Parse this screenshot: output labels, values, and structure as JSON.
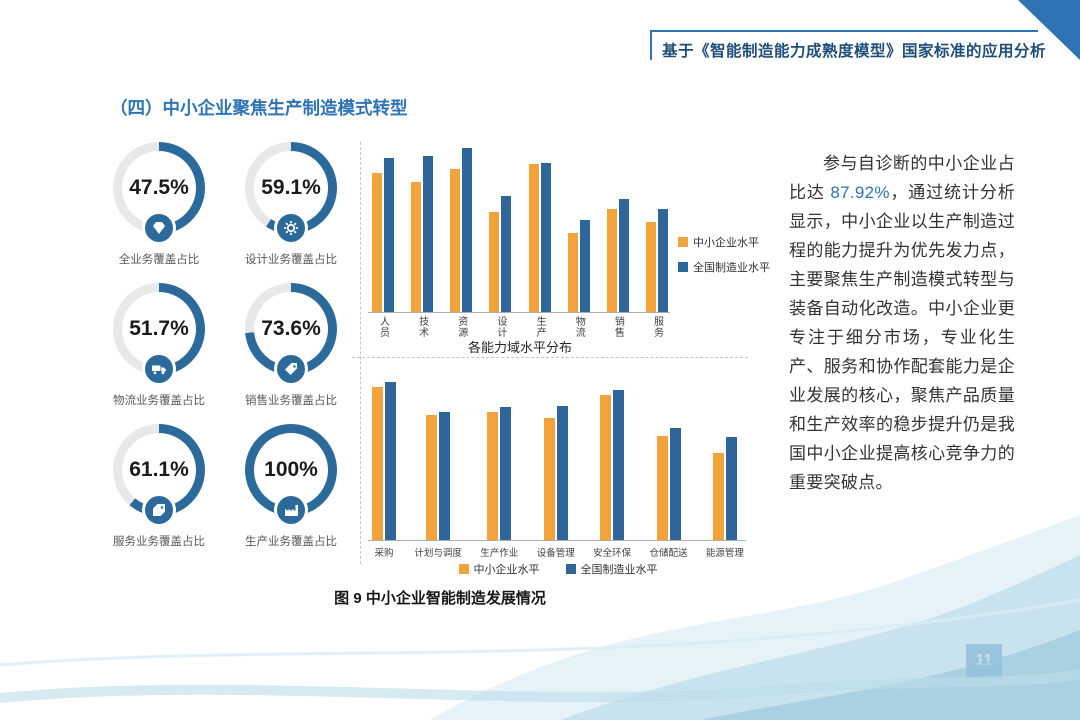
{
  "page": {
    "header_title": "基于《智能制造能力成熟度模型》国家标准的应用分析",
    "section_title": "（四）中小企业聚焦生产制造模式转型",
    "figure_caption": "图 9 中小企业智能制造发展情况",
    "page_number": "11"
  },
  "gauges": [
    {
      "value": "47.5%",
      "pct": 47.5,
      "label": "全业务覆盖占比",
      "icon": "gem-icon"
    },
    {
      "value": "59.1%",
      "pct": 59.1,
      "label": "设计业务覆盖占比",
      "icon": "gear-icon"
    },
    {
      "value": "51.7%",
      "pct": 51.7,
      "label": "物流业务覆盖占比",
      "icon": "truck-icon"
    },
    {
      "value": "73.6%",
      "pct": 73.6,
      "label": "销售业务覆盖占比",
      "icon": "tag-icon"
    },
    {
      "value": "61.1%",
      "pct": 61.1,
      "label": "服务业务覆盖占比",
      "icon": "ticket-icon"
    },
    {
      "value": "100%",
      "pct": 100,
      "label": "生产业务覆盖占比",
      "icon": "factory-icon"
    }
  ],
  "paragraph": {
    "before": "参与自诊断的中小企业占比达 ",
    "highlight": "87.92%",
    "after": "，通过统计分析显示，中小企业以生产制造过程的能力提升为优先发力点，主要聚焦生产制造模式转型与装备自动化改造。中小企业更专注于细分市场，专业化生产、服务和协作配套能力是企业发展的核心，聚焦产品质量和生产效率的稳步提升仍是我国中小企业提高核心竞争力的重要突破点。"
  },
  "colors": {
    "brand_blue": "#2e74b5",
    "dark_navy": "#1f4e79",
    "gauge_blue": "#2b6a9b",
    "ring_gray": "#e8e8e8",
    "bar_orange": "#f2a33c",
    "bar_blue": "#2f6699"
  },
  "chart_data": [
    {
      "type": "bar",
      "title": "各能力域水平分布",
      "categories": [
        "人员",
        "技术",
        "资源",
        "设计",
        "生产",
        "物流",
        "销售",
        "服务"
      ],
      "series": [
        {
          "name": "中小企业水平",
          "color_key": "bar_orange",
          "values": [
            85,
            79,
            87,
            61,
            90,
            48,
            63,
            55
          ]
        },
        {
          "name": "全国制造业水平",
          "color_key": "bar_blue",
          "values": [
            94,
            95,
            100,
            71,
            91,
            56,
            69,
            63
          ]
        }
      ],
      "ylim": [
        0,
        100
      ],
      "legend_position": "right"
    },
    {
      "type": "bar",
      "title": "",
      "categories": [
        "采购",
        "计划与调度",
        "生产作业",
        "设备管理",
        "安全环保",
        "仓储配送",
        "能源管理"
      ],
      "series": [
        {
          "name": "中小企业水平",
          "color_key": "bar_orange",
          "values": [
            97,
            79,
            81,
            77,
            92,
            66,
            55
          ]
        },
        {
          "name": "全国制造业水平",
          "color_key": "bar_blue",
          "values": [
            100,
            81,
            84,
            85,
            95,
            71,
            65
          ]
        }
      ],
      "ylim": [
        0,
        100
      ],
      "legend_position": "bottom"
    }
  ]
}
